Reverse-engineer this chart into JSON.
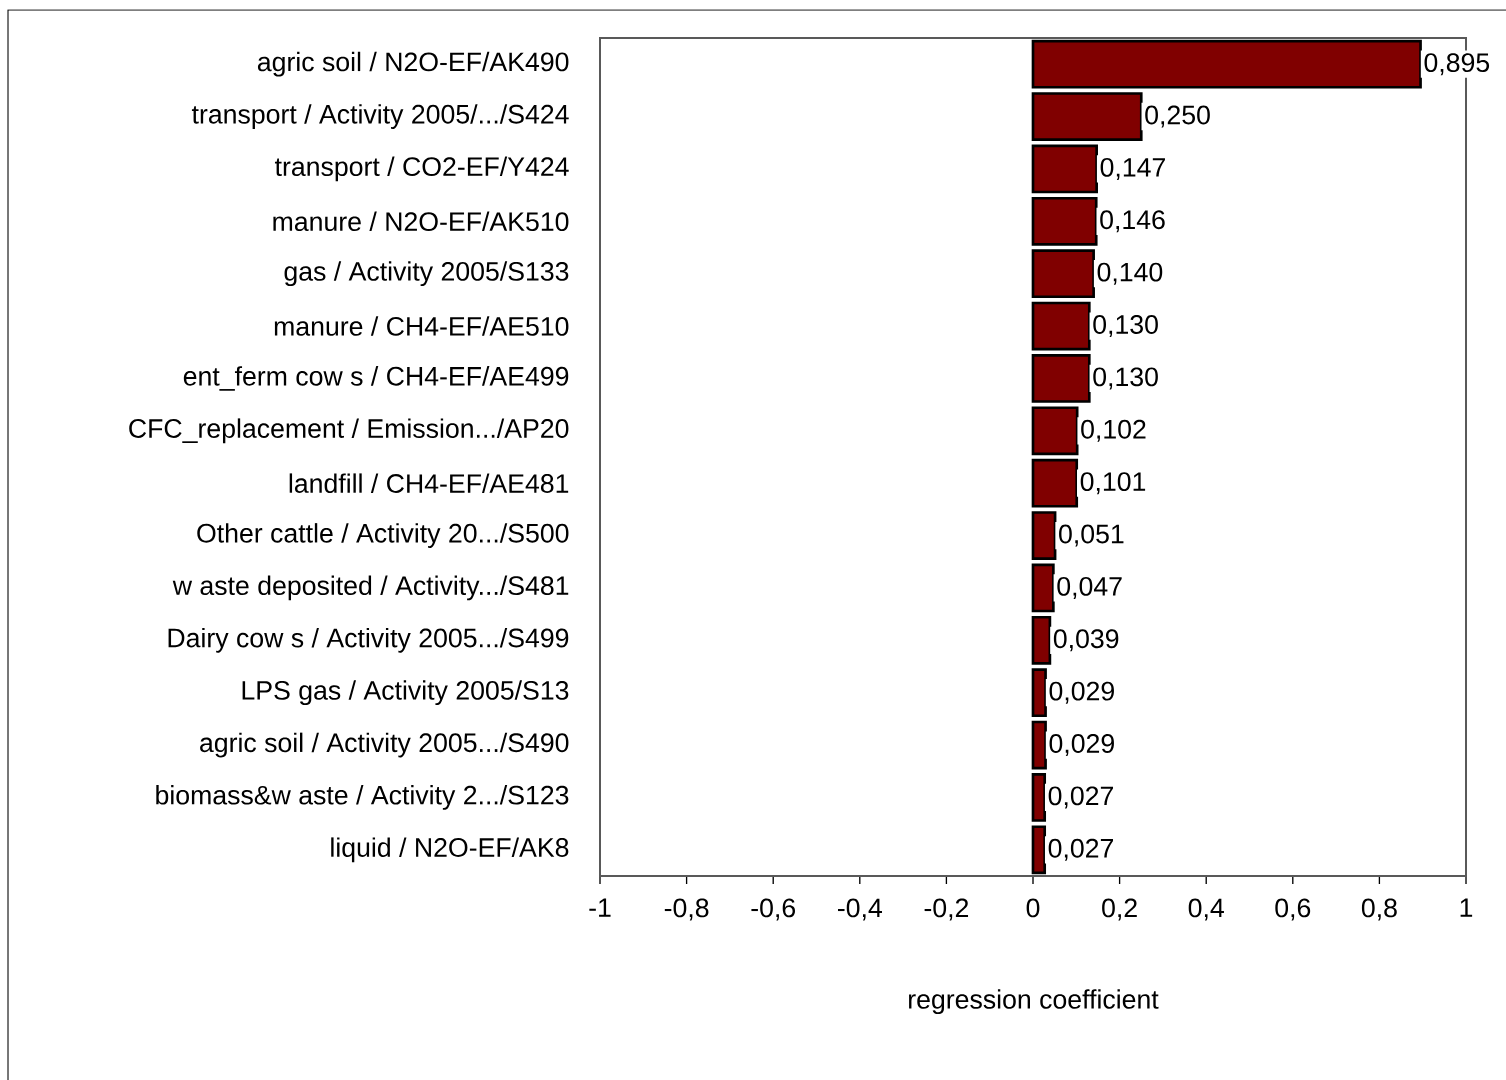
{
  "chart_data": {
    "type": "bar",
    "orientation": "horizontal",
    "xlabel": "regression coefficient",
    "categories": [
      "agric soil / N2O-EF/AK490",
      "transport / Activity 2005/.../S424",
      "transport / CO2-EF/Y424",
      "manure / N2O-EF/AK510",
      "gas / Activity 2005/S133",
      "manure / CH4-EF/AE510",
      "ent_ferm cow s / CH4-EF/AE499",
      "CFC_replacement / Emission.../AP20",
      "landfill / CH4-EF/AE481",
      "Other cattle / Activity 20.../S500",
      "w aste deposited / Activity.../S481",
      "Dairy cow s / Activity 2005.../S499",
      "LPS gas / Activity 2005/S13",
      "agric soil / Activity 2005.../S490",
      "biomass&w aste / Activity 2.../S123",
      "liquid / N2O-EF/AK8"
    ],
    "values": [
      0.895,
      0.25,
      0.147,
      0.146,
      0.14,
      0.13,
      0.13,
      0.102,
      0.101,
      0.051,
      0.047,
      0.039,
      0.029,
      0.029,
      0.027,
      0.027
    ],
    "value_labels": [
      "0,895",
      "0,250",
      "0,147",
      "0,146",
      "0,140",
      "0,130",
      "0,130",
      "0,102",
      "0,101",
      "0,051",
      "0,047",
      "0,039",
      "0,029",
      "0,029",
      "0,027",
      "0,027"
    ],
    "color": "#800000",
    "xlim": [
      -1,
      1
    ],
    "xticks": [
      -1,
      {
        "value": -0.8,
        "label": "-0,8"
      },
      {
        "value": -0.6,
        "label": "-0,6"
      },
      {
        "value": -0.4,
        "label": "-0,4"
      },
      {
        "value": -0.2,
        "label": "-0,2"
      },
      0,
      {
        "value": 0.2,
        "label": "0,2"
      },
      {
        "value": 0.4,
        "label": "0,4"
      },
      {
        "value": 0.6,
        "label": "0,6"
      },
      {
        "value": 0.8,
        "label": "0,8"
      },
      1
    ]
  }
}
